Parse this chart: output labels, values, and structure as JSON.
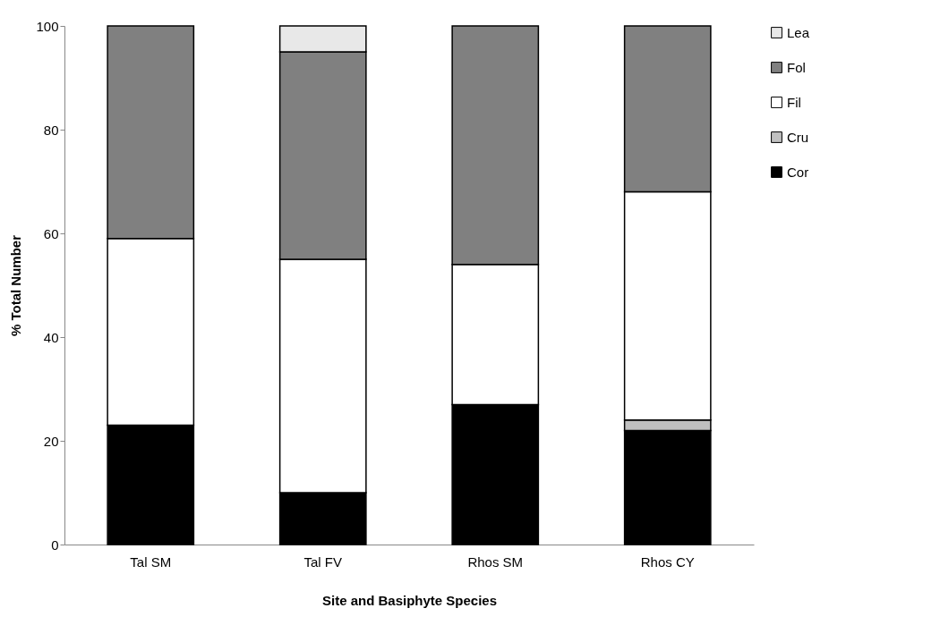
{
  "chart_data": {
    "type": "bar",
    "stacked": true,
    "xlabel": "Site and Basiphyte Species",
    "ylabel": "% Total Number",
    "categories": [
      "Tal SM",
      "Tal FV",
      "Rhos SM",
      "Rhos CY"
    ],
    "series": [
      {
        "name": "Cor",
        "color": "#000000",
        "values": [
          23,
          10,
          27,
          22
        ]
      },
      {
        "name": "Cru",
        "color": "#c0c0c0",
        "values": [
          0,
          0,
          0,
          2
        ]
      },
      {
        "name": "Fil",
        "color": "#ffffff",
        "values": [
          36,
          45,
          27,
          44
        ]
      },
      {
        "name": "Fol",
        "color": "#808080",
        "values": [
          41,
          40,
          46,
          32
        ]
      },
      {
        "name": "Lea",
        "color": "#e8e8e8",
        "values": [
          0,
          5,
          0,
          0
        ]
      }
    ],
    "ylim": [
      0,
      100
    ],
    "yticks": [
      0,
      20,
      40,
      60,
      80,
      100
    ],
    "legend": "right"
  }
}
